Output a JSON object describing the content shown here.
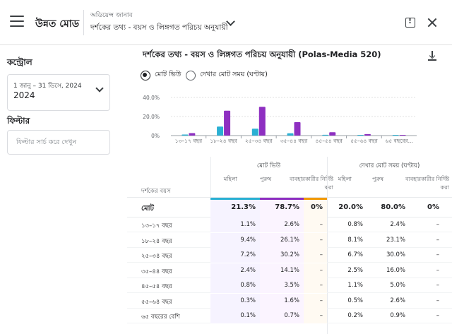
{
  "header": {
    "app_title": "উন্নত মোড",
    "report_group": "অডিয়েন্স জানাব",
    "report_name": "দর্শকের তথ্য - বয়স ও লিঙ্গগত পরিচয় অনুযায়ী"
  },
  "sidebar": {
    "control_label": "কন্ট্রোল",
    "date_range": "1 জানু – 31 ডিসে, 2024",
    "date_year": "2024",
    "filter_label": "ফিল্টার",
    "filter_placeholder": "ফিল্টার সার্চ করে দেখুন"
  },
  "main": {
    "title": "দর্শকের তথ্য - বয়স ও লিঙ্গগত পরিচয় অনুযায়ী (Polas-Media 520)",
    "radio_views": "মোট ভিউ",
    "radio_watch": "দেখার মোট সময় (ঘণ্টায়)"
  },
  "colors": {
    "female": "#2ab0d3",
    "male": "#8e2fc1",
    "unspecified": "#f29900"
  },
  "chart_data": {
    "type": "bar",
    "categories": [
      "১৩–১৭ বছর",
      "১৮–২৪ বছর",
      "২৫–৩৪ বছর",
      "৩৫–৪৪ বছর",
      "৪৫–৫৪ বছর",
      "৫৫–৬৪ বছর",
      "৬৫ বছরের..."
    ],
    "series": [
      {
        "name": "মহিলা",
        "values": [
          1.1,
          9.4,
          7.2,
          2.4,
          0.8,
          0.3,
          0.1
        ]
      },
      {
        "name": "পুরুষ",
        "values": [
          2.6,
          26.1,
          30.2,
          14.1,
          3.5,
          1.6,
          0.7
        ]
      }
    ],
    "yticks": [
      "0%",
      "20.0%",
      "40.0%"
    ],
    "ylim": [
      0,
      40
    ]
  },
  "table": {
    "row_header": "দর্শকের বয়স",
    "groups": [
      "মোট ভিউ",
      "দেখার মোট সময় (ঘণ্টায়)"
    ],
    "subcols": [
      "মহিলা",
      "পুরুষ",
      "ব্যবহারকারীর নির্দিষ্ট করা"
    ],
    "total": {
      "label": "মোট",
      "values": [
        "21.3%",
        "78.7%",
        "0%",
        "20.0%",
        "80.0%",
        "0%"
      ]
    },
    "rows": [
      {
        "label": "১৩–১৭ বছর",
        "values": [
          "1.1%",
          "2.6%",
          "–",
          "0.8%",
          "2.4%",
          "–"
        ]
      },
      {
        "label": "১৮–২৪ বছর",
        "values": [
          "9.4%",
          "26.1%",
          "–",
          "8.1%",
          "23.1%",
          "–"
        ]
      },
      {
        "label": "২৫–৩৪ বছর",
        "values": [
          "7.2%",
          "30.2%",
          "–",
          "6.7%",
          "30.0%",
          "–"
        ]
      },
      {
        "label": "৩৫–৪৪ বছর",
        "values": [
          "2.4%",
          "14.1%",
          "–",
          "2.5%",
          "16.0%",
          "–"
        ]
      },
      {
        "label": "৪৫–৫৪ বছর",
        "values": [
          "0.8%",
          "3.5%",
          "–",
          "1.1%",
          "5.0%",
          "–"
        ]
      },
      {
        "label": "৫৫–৬৪ বছর",
        "values": [
          "0.3%",
          "1.6%",
          "–",
          "0.5%",
          "2.6%",
          "–"
        ]
      },
      {
        "label": "৬৫ বছরের বেশি",
        "values": [
          "0.1%",
          "0.7%",
          "–",
          "0.2%",
          "0.9%",
          "–"
        ]
      }
    ]
  }
}
